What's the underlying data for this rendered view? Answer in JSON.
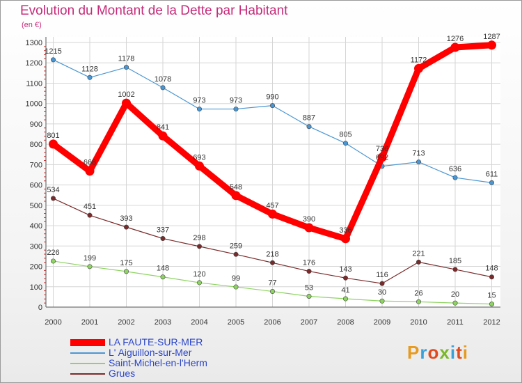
{
  "title": "Evolution du Montant de la Dette par Habitant",
  "unit": "(en €)",
  "logo": {
    "text": "Proxiti",
    "letter_colors": [
      "#e79a1e",
      "#3aa0d8",
      "#e04a1e",
      "#7ab82a",
      "#3aa0d8",
      "#e04a1e",
      "#e79a1e"
    ]
  },
  "chart_data": {
    "type": "line",
    "title": "Evolution du Montant de la Dette par Habitant",
    "ylabel": "(en €)",
    "xlabel": "",
    "ylim": [
      0,
      1300
    ],
    "yticks": [
      0,
      100,
      200,
      300,
      400,
      500,
      600,
      700,
      800,
      900,
      1000,
      1100,
      1200,
      1300
    ],
    "grid": true,
    "legend_position": "bottom-left",
    "x": [
      "2000",
      "2001",
      "2002",
      "2003",
      "2004",
      "2005",
      "2006",
      "2007",
      "2008",
      "2009",
      "2010",
      "2011",
      "2012"
    ],
    "series": [
      {
        "name": "LA FAUTE-SUR-MER",
        "color": "#ff0000",
        "width": "thick",
        "values": [
          801,
          668,
          1002,
          841,
          693,
          548,
          457,
          390,
          336,
          736,
          1172,
          1276,
          1287
        ],
        "labels": [
          "801",
          "668",
          "1002",
          "841",
          "693",
          "548",
          "457",
          "390",
          "336",
          "736",
          "1172",
          "1276",
          "1287"
        ]
      },
      {
        "name": "L' Aiguillon-sur-Mer",
        "color": "#4a96d2",
        "values": [
          1215,
          1128,
          1178,
          1078,
          973,
          973,
          990,
          887,
          805,
          692,
          713,
          636,
          611
        ],
        "labels": [
          "1215",
          "1128",
          "1178",
          "1078",
          "973",
          "973",
          "990",
          "887",
          "805",
          "692",
          "713",
          "636",
          "611"
        ]
      },
      {
        "name": "Saint-Michel-en-l'Herm",
        "color": "#8ed462",
        "values": [
          226,
          199,
          175,
          148,
          120,
          99,
          77,
          53,
          41,
          30,
          26,
          20,
          15
        ],
        "labels": [
          "226",
          "199",
          "175",
          "148",
          "120",
          "99",
          "77",
          "53",
          "41",
          "30",
          "26",
          "20",
          "15"
        ]
      },
      {
        "name": "Grues",
        "color": "#7a2a2a",
        "values": [
          534,
          451,
          393,
          337,
          298,
          259,
          218,
          176,
          143,
          116,
          221,
          185,
          148
        ],
        "labels": [
          "534",
          "451",
          "393",
          "337",
          "298",
          "259",
          "218",
          "176",
          "143",
          "116",
          "221",
          "185",
          "148"
        ]
      }
    ]
  }
}
